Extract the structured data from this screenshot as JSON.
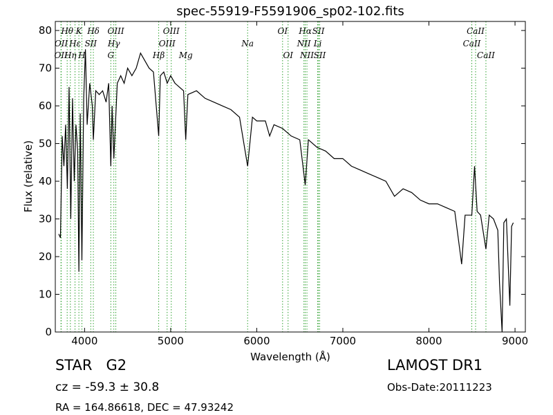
{
  "chart_data": {
    "type": "line",
    "title": "spec-55919-F5591906_sp02-102.fits",
    "x_label": "Wavelength (Å)",
    "y_label": "Flux (relative)",
    "xlim": [
      3660,
      9120
    ],
    "ylim": [
      0,
      82.4
    ],
    "xticks": [
      4000,
      5000,
      6000,
      7000,
      8000,
      9000
    ],
    "yticks": [
      0,
      10,
      20,
      30,
      40,
      50,
      60,
      70,
      80
    ],
    "line_marker_color": "#2ca02c",
    "spectral_lines": [
      {
        "label": "Hθ",
        "wavelength": 3798
      },
      {
        "label": "K",
        "wavelength": 3934
      },
      {
        "label": "Hδ",
        "wavelength": 4102
      },
      {
        "label": "OIII",
        "wavelength": 4363
      },
      {
        "label": "OIII",
        "wavelength": 5007
      },
      {
        "label": "OI",
        "wavelength": 6300
      },
      {
        "label": "Hα",
        "wavelength": 6563
      },
      {
        "label": "SII",
        "wavelength": 6716
      },
      {
        "label": "CaII",
        "wavelength": 8542
      },
      {
        "label": "OII",
        "wavelength": 3729
      },
      {
        "label": "Hε",
        "wavelength": 3889
      },
      {
        "label": "SII",
        "wavelength": 4072
      },
      {
        "label": "Hγ",
        "wavelength": 4340
      },
      {
        "label": "OIII",
        "wavelength": 4959
      },
      {
        "label": "Na",
        "wavelength": 5894
      },
      {
        "label": "NII",
        "wavelength": 6548
      },
      {
        "label": "Li",
        "wavelength": 6708
      },
      {
        "label": "CaII",
        "wavelength": 8498
      },
      {
        "label": "OII",
        "wavelength": 3726
      },
      {
        "label": "Hη",
        "wavelength": 3835
      },
      {
        "label": "H",
        "wavelength": 3969
      },
      {
        "label": "G",
        "wavelength": 4305
      },
      {
        "label": "Hβ",
        "wavelength": 4861
      },
      {
        "label": "Mg",
        "wavelength": 5175
      },
      {
        "label": "OI",
        "wavelength": 6364
      },
      {
        "label": "NII",
        "wavelength": 6583
      },
      {
        "label": "SII",
        "wavelength": 6731
      },
      {
        "label": "CaII",
        "wavelength": 8662
      }
    ],
    "series": [
      {
        "color": "#000000",
        "x": [
          3700,
          3720,
          3740,
          3760,
          3780,
          3800,
          3820,
          3840,
          3860,
          3880,
          3900,
          3920,
          3934,
          3950,
          3969,
          3990,
          4010,
          4030,
          4060,
          4090,
          4102,
          4130,
          4170,
          4210,
          4250,
          4280,
          4305,
          4320,
          4340,
          4380,
          4420,
          4460,
          4500,
          4550,
          4600,
          4650,
          4700,
          4750,
          4800,
          4861,
          4880,
          4920,
          4960,
          5000,
          5050,
          5100,
          5150,
          5175,
          5200,
          5300,
          5400,
          5500,
          5600,
          5700,
          5800,
          5894,
          5950,
          6000,
          6100,
          6150,
          6200,
          6300,
          6400,
          6500,
          6563,
          6600,
          6700,
          6800,
          6900,
          7000,
          7100,
          7200,
          7300,
          7400,
          7500,
          7600,
          7700,
          7800,
          7900,
          8000,
          8100,
          8200,
          8300,
          8380,
          8420,
          8498,
          8530,
          8560,
          8600,
          8662,
          8700,
          8750,
          8800,
          8820,
          8850,
          8870,
          8900,
          8940,
          8960,
          8980
        ],
        "values": [
          26,
          25,
          52,
          44,
          55,
          38,
          65,
          30,
          62,
          40,
          55,
          48,
          16,
          58,
          19,
          62,
          75,
          55,
          66,
          60,
          51,
          64,
          63,
          64,
          61,
          66,
          44,
          60,
          46,
          66,
          68,
          66,
          70,
          68,
          70,
          74,
          72,
          70,
          69,
          52,
          68,
          69,
          66,
          68,
          66,
          65,
          64,
          51,
          63,
          64,
          62,
          61,
          60,
          59,
          57,
          44,
          57,
          56,
          56,
          52,
          55,
          54,
          52,
          51,
          39,
          51,
          49,
          48,
          46,
          46,
          44,
          43,
          42,
          41,
          40,
          36,
          38,
          37,
          35,
          34,
          34,
          33,
          32,
          18,
          31,
          31,
          44,
          32,
          31,
          22,
          31,
          30,
          27,
          13,
          0,
          29,
          30,
          7,
          28,
          29
        ]
      }
    ]
  },
  "info": {
    "object_class": "STAR   G2",
    "survey": "LAMOST DR1",
    "redshift": "cz = -59.3 ± 30.8",
    "obs_date": "Obs-Date:20111223",
    "coords": "RA = 164.86618, DEC = 47.93242"
  }
}
